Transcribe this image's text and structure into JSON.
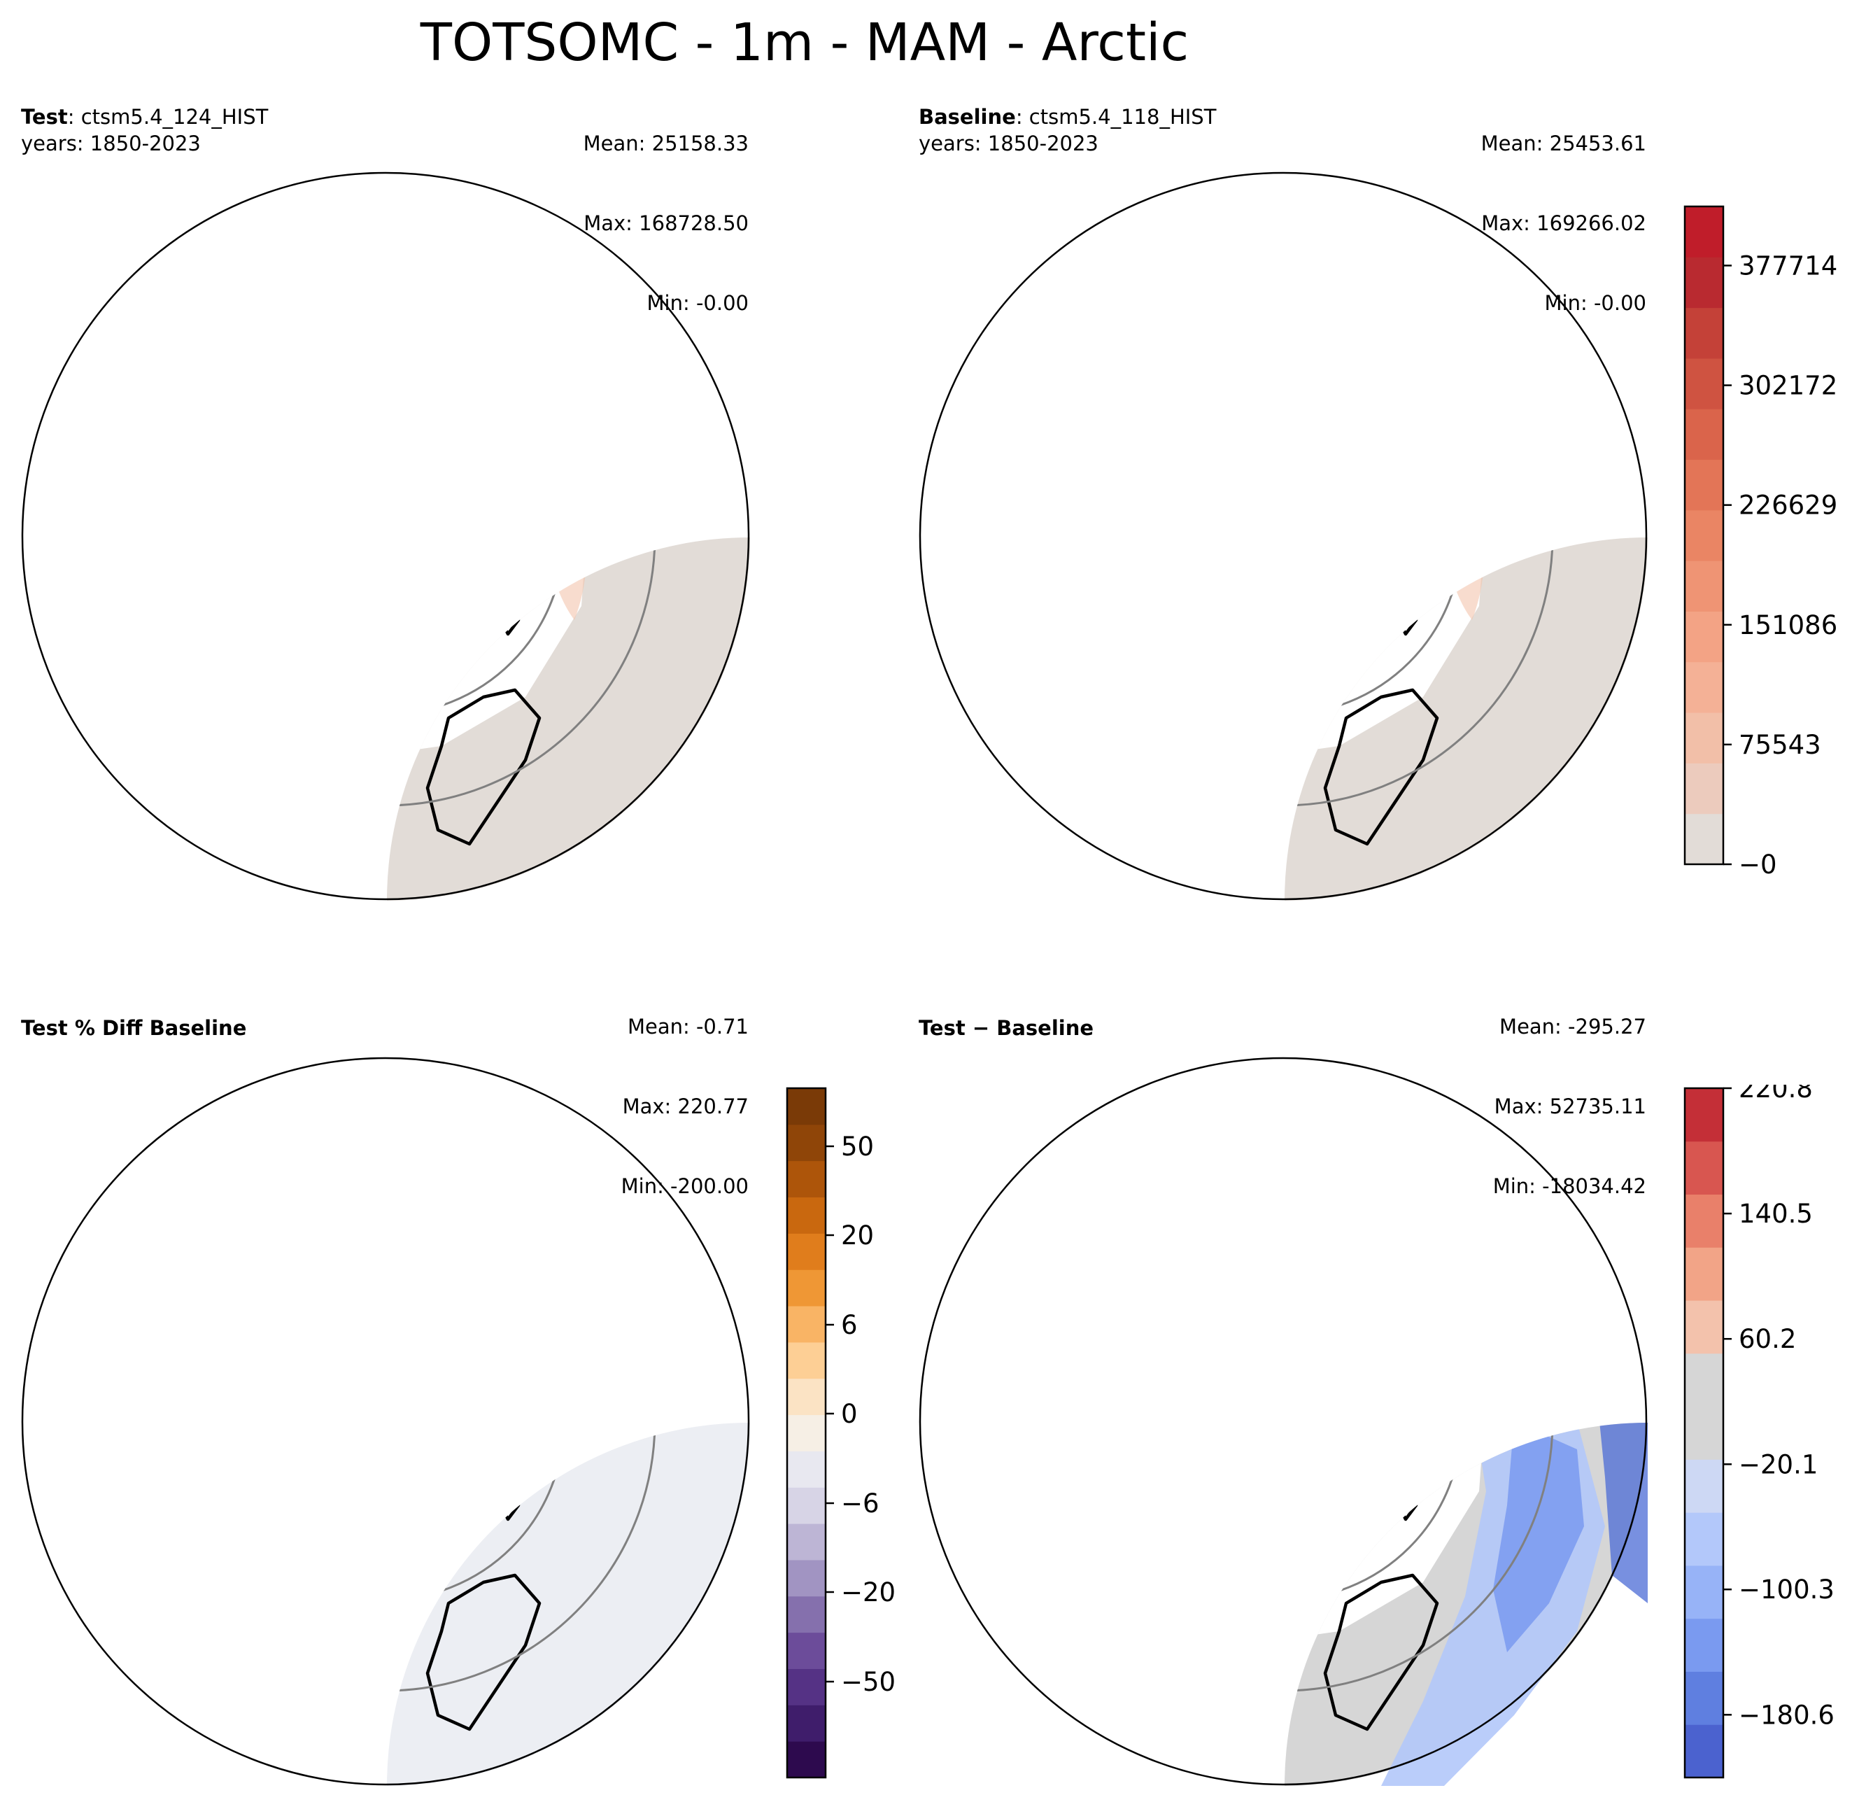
{
  "title": "TOTSOMC - 1m - MAM - Arctic",
  "colors": {
    "land_base": "#e2dcd7",
    "warm_patch": "#f4c4ad",
    "warm_strong": "#d9534a",
    "cool_patch": "#b9c7f0",
    "cool_strong": "#4b6bd6",
    "purple_patch": "#7a5aa6",
    "orange_patch": "#e38a2a",
    "neutral_grey": "#d6d6d6",
    "pct_bg": "#eceef3",
    "pct_warm": "#f6efe5",
    "grid": "#808080"
  },
  "panels": {
    "test": {
      "label_bold": "Test",
      "label_rest": ": ctsm5.4_124_HIST",
      "years": "years: 1850-2023",
      "mean": "Mean: 25158.33",
      "max": "Max: 168728.50",
      "min": "Min: -0.00"
    },
    "baseline": {
      "label_bold": "Baseline",
      "label_rest": ": ctsm5.4_118_HIST",
      "years": "years: 1850-2023",
      "mean": "Mean: 25453.61",
      "max": "Max: 169266.02",
      "min": "Min: -0.00"
    },
    "pct_diff": {
      "label": "Test % Diff Baseline",
      "mean": "Mean: -0.71",
      "max": "Max: 220.77",
      "min": "Min: -200.00"
    },
    "diff": {
      "label": "Test − Baseline",
      "mean": "Mean: -295.27",
      "max": "Max: 52735.11",
      "min": "Min: -18034.42"
    }
  },
  "colorbars": {
    "main": {
      "ticks": [
        "377714",
        "302172",
        "226629",
        "151086",
        "75543",
        "−0"
      ],
      "tick_values": [
        377714,
        302172,
        226629,
        151086,
        75543,
        0
      ],
      "range": [
        0,
        415000
      ],
      "colors": [
        "#e2dcd7",
        "#eccbbd",
        "#f2bfa8",
        "#f4b196",
        "#f3a385",
        "#ef9474",
        "#ea8564",
        "#e37557",
        "#da644b",
        "#cf5341",
        "#c44138",
        "#b92a30",
        "#c01d2a"
      ]
    },
    "pct": {
      "ticks": [
        "50",
        "20",
        "6",
        "0",
        "−6",
        "−20",
        "−50"
      ],
      "colors": [
        "#2d0a4e",
        "#3f1d6b",
        "#553285",
        "#6c4c9a",
        "#8570ad",
        "#a194c2",
        "#bdb5d5",
        "#d7d4e6",
        "#e8e8f0",
        "#f6efe5",
        "#fbe3c4",
        "#fdcf95",
        "#f9b465",
        "#ef9735",
        "#e07d1c",
        "#c9680f",
        "#ad550a",
        "#8f4508",
        "#7a3a07"
      ]
    },
    "diff": {
      "ticks": [
        "220.8",
        "140.5",
        "60.2",
        "−20.1",
        "−100.3",
        "−180.6"
      ],
      "tick_values": [
        220.8,
        140.5,
        60.2,
        -20.1,
        -100.3,
        -180.6
      ],
      "range": [
        -220.8,
        220.8
      ],
      "colors": [
        "#4b62cf",
        "#5f7fe0",
        "#7a9af0",
        "#97b3f7",
        "#b3c8fa",
        "#cdd8f4",
        "#d6d6d6",
        "#d6d6d6",
        "#f3c2ac",
        "#f2a487",
        "#e9806a",
        "#d85650",
        "#c42f37"
      ]
    }
  }
}
